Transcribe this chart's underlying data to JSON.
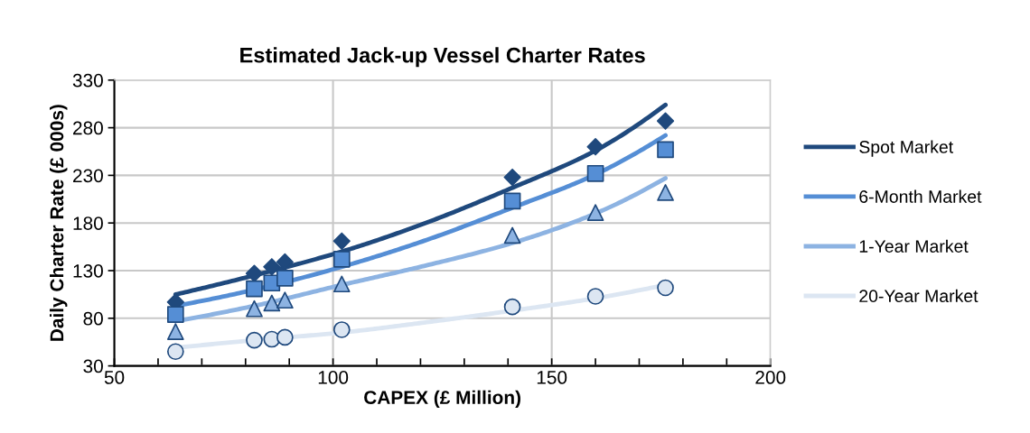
{
  "chart_data": {
    "type": "scatter",
    "title": "Estimated Jack-up Vessel Charter Rates",
    "xlabel": "CAPEX (£ Million)",
    "ylabel": "Daily Charter Rate (£ 000s)",
    "xlim": [
      50,
      200
    ],
    "xticks": [
      50,
      {
        "value": 60,
        "label": null
      },
      {
        "value": 70,
        "label": null
      },
      {
        "value": 80,
        "label": null
      },
      {
        "value": 90,
        "label": null
      },
      100,
      {
        "value": 110,
        "label": null
      },
      {
        "value": 120,
        "label": null
      },
      {
        "value": 130,
        "label": null
      },
      {
        "value": 140,
        "label": null
      },
      150,
      {
        "value": 160,
        "label": null
      },
      {
        "value": 170,
        "label": null
      },
      {
        "value": 180,
        "label": null
      },
      {
        "value": 190,
        "label": null
      },
      200
    ],
    "ylim": [
      30,
      330
    ],
    "yticks": [
      30,
      80,
      130,
      180,
      230,
      280,
      330
    ],
    "grid": true,
    "legend": "right",
    "series": [
      {
        "marker": "diamond",
        "color": "#1f497d",
        "x": [
          64,
          82,
          86,
          89,
          102,
          141,
          160,
          176
        ],
        "values": [
          97,
          127,
          134,
          139,
          161,
          228,
          260,
          287
        ]
      },
      {
        "marker": "square",
        "color": "#558ed5",
        "x": [
          64,
          82,
          86,
          89,
          102,
          141,
          160,
          176
        ],
        "values": [
          84,
          111,
          117,
          122,
          142,
          203,
          232,
          257
        ]
      },
      {
        "marker": "triangle",
        "color": "#8db3e2",
        "x": [
          64,
          82,
          86,
          89,
          102,
          141,
          160,
          176
        ],
        "values": [
          66,
          90,
          96,
          99,
          116,
          167,
          191,
          212
        ]
      },
      {
        "marker": "circle",
        "color": "#dce6f2",
        "x": [
          64,
          82,
          86,
          89,
          102,
          141,
          160,
          176
        ],
        "values": [
          45,
          57,
          58,
          60,
          68,
          92,
          103,
          112
        ]
      },
      {
        "type": "line",
        "name": "Spot Market",
        "marker": "none",
        "color": "#1f497d",
        "x": [
          64,
          82,
          102,
          120,
          141,
          160,
          176
        ],
        "values": [
          105,
          125,
          150,
          178,
          217,
          256,
          304
        ]
      },
      {
        "type": "line",
        "name": "6-Month Market",
        "marker": "none",
        "color": "#558ed5",
        "x": [
          64,
          82,
          102,
          120,
          141,
          160,
          176
        ],
        "values": [
          93,
          110,
          134,
          160,
          196,
          231,
          272
        ]
      },
      {
        "type": "line",
        "name": "1-Year Market",
        "marker": "none",
        "color": "#8db3e2",
        "x": [
          64,
          82,
          102,
          120,
          141,
          160,
          176
        ],
        "values": [
          77,
          93,
          115,
          134,
          159,
          190,
          227
        ]
      },
      {
        "type": "line",
        "name": "20-Year Market",
        "marker": "none",
        "color": "#dce6f2",
        "x": [
          64,
          82,
          102,
          120,
          141,
          160,
          176
        ],
        "values": [
          49,
          57,
          65,
          75,
          88,
          101,
          115
        ]
      }
    ]
  }
}
